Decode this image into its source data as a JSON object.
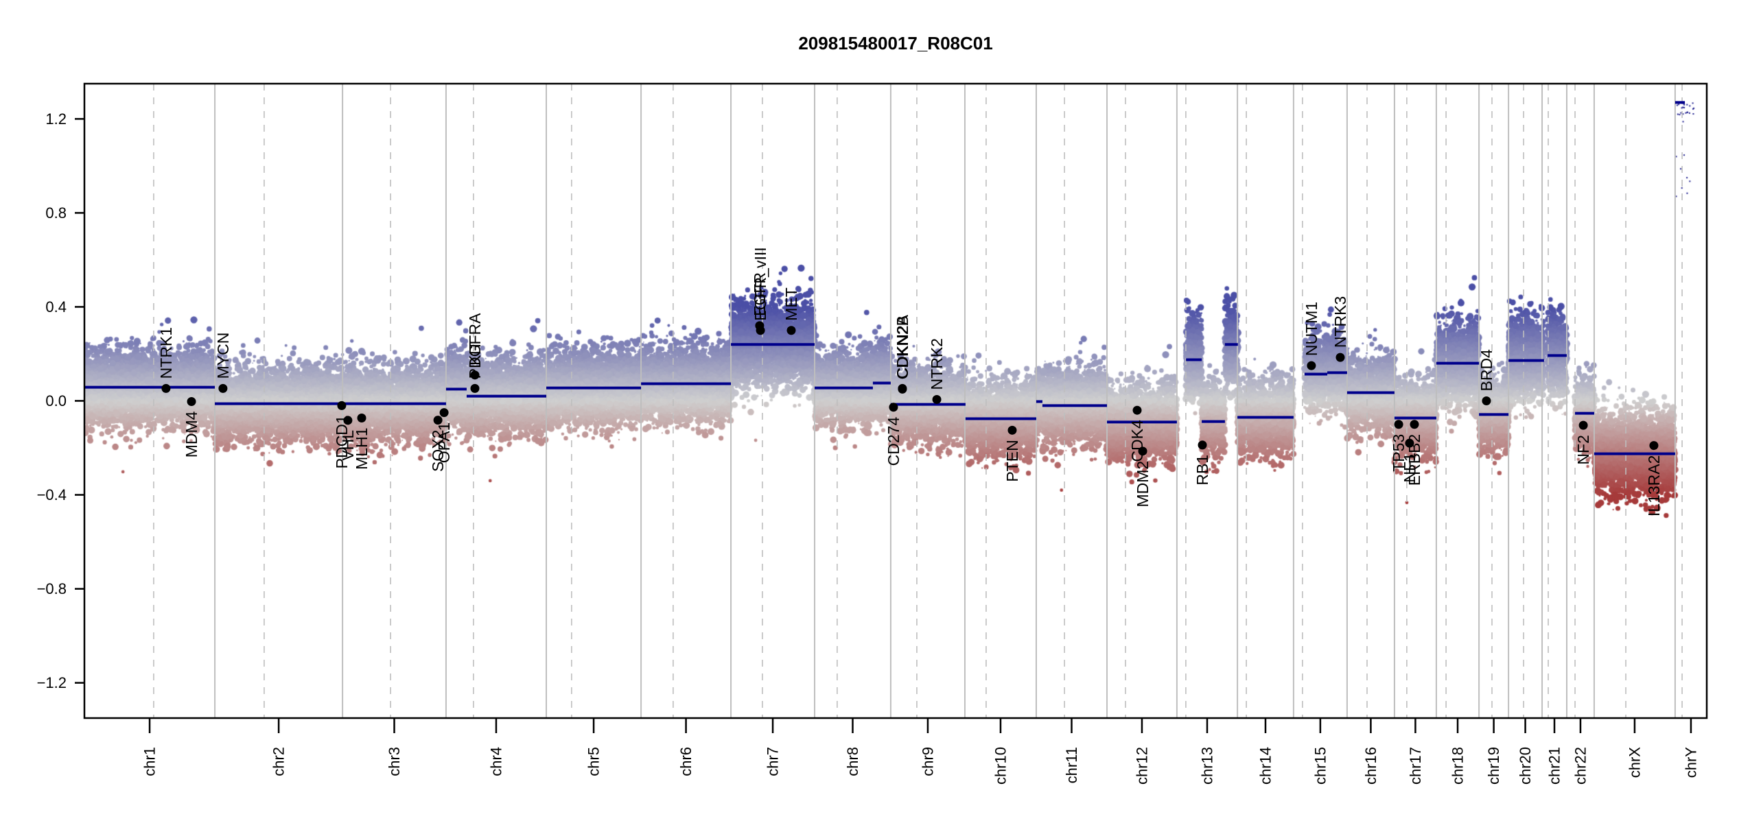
{
  "chart_data": {
    "type": "scatter",
    "title": "209815480017_R08C01",
    "xlabel": "",
    "ylabel": "",
    "x_units": "relative genome position (0-1000)",
    "xlim": [
      0,
      1000
    ],
    "ylim": [
      -1.35,
      1.35
    ],
    "yticks": [
      -1.2,
      -0.8,
      -0.4,
      0.0,
      0.4,
      0.8,
      1.2
    ],
    "ytick_labels": [
      "−1.2",
      "−0.8",
      "−0.4",
      "0.0",
      "0.4",
      "0.8",
      "1.2"
    ],
    "grid": false,
    "legend": "none",
    "colors": {
      "gain": "#4b4fa6",
      "neutral": "#cfcfcf",
      "loss": "#a63a3a",
      "segment": "#00008b",
      "gene_marker": "#000000",
      "chrom_boundary": "#bebebe",
      "centromere": "#bebebe"
    },
    "chromosomes": [
      {
        "name": "chr1",
        "start": 0.0,
        "end": 80.4,
        "centromere": 42.7
      },
      {
        "name": "chr2",
        "start": 80.4,
        "end": 159.1,
        "centromere": 110.8
      },
      {
        "name": "chr3",
        "start": 159.1,
        "end": 222.9,
        "centromere": 188.7
      },
      {
        "name": "chr4",
        "start": 222.9,
        "end": 284.7,
        "centromere": 239.8
      },
      {
        "name": "chr5",
        "start": 284.7,
        "end": 343.1,
        "centromere": 300.3
      },
      {
        "name": "chr6",
        "start": 343.1,
        "end": 398.5,
        "centromere": 362.9
      },
      {
        "name": "chr7",
        "start": 398.5,
        "end": 450.1,
        "centromere": 417.9
      },
      {
        "name": "chr8",
        "start": 450.1,
        "end": 497.0,
        "centromere": 464.0
      },
      {
        "name": "chr9",
        "start": 497.0,
        "end": 542.7,
        "centromere": 513.1
      },
      {
        "name": "chr10",
        "start": 542.7,
        "end": 586.7,
        "centromere": 555.8
      },
      {
        "name": "chr11",
        "start": 586.7,
        "end": 630.3,
        "centromere": 604.1
      },
      {
        "name": "chr12",
        "start": 630.3,
        "end": 673.4,
        "centromere": 641.7
      },
      {
        "name": "chr13",
        "start": 673.4,
        "end": 710.7,
        "centromere": 678.9
      },
      {
        "name": "chr14",
        "start": 710.7,
        "end": 745.3,
        "centromere": 716.2
      },
      {
        "name": "chr15",
        "start": 745.3,
        "end": 778.3,
        "centromere": 750.8
      },
      {
        "name": "chr16",
        "start": 778.3,
        "end": 807.5,
        "centromere": 790.6
      },
      {
        "name": "chr17",
        "start": 807.5,
        "end": 833.3,
        "centromere": 815.1
      },
      {
        "name": "chr18",
        "start": 833.3,
        "end": 859.6,
        "centromere": 839.3
      },
      {
        "name": "chr19",
        "start": 859.6,
        "end": 877.8,
        "centromere": 867.6
      },
      {
        "name": "chr20",
        "start": 877.8,
        "end": 898.5,
        "centromere": 887.1
      },
      {
        "name": "chr21",
        "start": 898.5,
        "end": 913.7,
        "centromere": 902.3
      },
      {
        "name": "chr22",
        "start": 913.7,
        "end": 930.6,
        "centromere": 918.8
      },
      {
        "name": "chrX",
        "start": 930.6,
        "end": 980.5,
        "centromere": 950.1
      },
      {
        "name": "chrY",
        "start": 980.5,
        "end": 1000.0,
        "centromere": 984.8
      }
    ],
    "segments": [
      {
        "chrom": "chr1",
        "start": 0.0,
        "end": 80.4,
        "value": 0.058
      },
      {
        "chrom": "chr2-3",
        "start": 80.4,
        "end": 222.9,
        "value": -0.012
      },
      {
        "chrom": "chr4",
        "start": 222.9,
        "end": 235.6,
        "value": 0.05
      },
      {
        "chrom": "chr4",
        "start": 235.6,
        "end": 284.7,
        "value": 0.02
      },
      {
        "chrom": "chr5",
        "start": 284.7,
        "end": 343.1,
        "value": 0.055
      },
      {
        "chrom": "chr6",
        "start": 343.1,
        "end": 398.5,
        "value": 0.073
      },
      {
        "chrom": "chr7",
        "start": 398.5,
        "end": 450.1,
        "value": 0.24
      },
      {
        "chrom": "chr8",
        "start": 450.1,
        "end": 486.0,
        "value": 0.055
      },
      {
        "chrom": "chr8",
        "start": 486.0,
        "end": 497.0,
        "value": 0.076
      },
      {
        "chrom": "chr9",
        "start": 497.0,
        "end": 543.1,
        "value": -0.015
      },
      {
        "chrom": "chr10",
        "start": 543.1,
        "end": 586.7,
        "value": -0.076
      },
      {
        "chrom": "chr11",
        "start": 586.7,
        "end": 590.5,
        "value": -0.003
      },
      {
        "chrom": "chr11",
        "start": 590.5,
        "end": 630.3,
        "value": -0.02
      },
      {
        "chrom": "chr12",
        "start": 630.3,
        "end": 673.4,
        "value": -0.09
      },
      {
        "chrom": "chr13",
        "start": 679.0,
        "end": 688.7,
        "value": 0.175
      },
      {
        "chrom": "chr13",
        "start": 688.7,
        "end": 703.0,
        "value": -0.088
      },
      {
        "chrom": "chr13",
        "start": 703.0,
        "end": 711.0,
        "value": 0.24
      },
      {
        "chrom": "chr14",
        "start": 710.7,
        "end": 745.3,
        "value": -0.07
      },
      {
        "chrom": "chr15",
        "start": 752.1,
        "end": 766.1,
        "value": 0.114
      },
      {
        "chrom": "chr15",
        "start": 766.1,
        "end": 778.3,
        "value": 0.12
      },
      {
        "chrom": "chr16",
        "start": 778.3,
        "end": 807.5,
        "value": 0.035
      },
      {
        "chrom": "chr17",
        "start": 807.5,
        "end": 833.3,
        "value": -0.073
      },
      {
        "chrom": "chr18",
        "start": 833.3,
        "end": 859.6,
        "value": 0.16
      },
      {
        "chrom": "chr19",
        "start": 859.6,
        "end": 877.8,
        "value": -0.058
      },
      {
        "chrom": "chr20",
        "start": 877.8,
        "end": 899.7,
        "value": 0.172
      },
      {
        "chrom": "chr21",
        "start": 901.9,
        "end": 913.7,
        "value": 0.193
      },
      {
        "chrom": "chr22",
        "start": 918.8,
        "end": 930.6,
        "value": -0.053
      },
      {
        "chrom": "chrX",
        "start": 930.6,
        "end": 980.5,
        "value": -0.225
      },
      {
        "chrom": "chrY",
        "start": 980.5,
        "end": 986.5,
        "value": 1.27
      }
    ],
    "genes": [
      {
        "name": "NTRK1",
        "pos": 50.3,
        "value": 0.053,
        "label_dir": "up"
      },
      {
        "name": "MDM4",
        "pos": 66.0,
        "value": -0.003,
        "label_dir": "down"
      },
      {
        "name": "MYCN",
        "pos": 85.4,
        "value": 0.053,
        "label_dir": "up"
      },
      {
        "name": "PDCD1",
        "pos": 158.6,
        "value": -0.02,
        "label_dir": "down"
      },
      {
        "name": "VHL",
        "pos": 162.4,
        "value": -0.083,
        "label_dir": "down"
      },
      {
        "name": "MLH1",
        "pos": 170.9,
        "value": -0.073,
        "label_dir": "down"
      },
      {
        "name": "SOX2",
        "pos": 217.9,
        "value": -0.082,
        "label_dir": "down"
      },
      {
        "name": "OPA1",
        "pos": 221.7,
        "value": -0.05,
        "label_dir": "down"
      },
      {
        "name": "KIT",
        "pos": 240.7,
        "value": 0.11,
        "label_dir": "up"
      },
      {
        "name": "PDGFRA",
        "pos": 240.7,
        "value": 0.053,
        "label_dir": "up"
      },
      {
        "name": "EGFR",
        "pos": 416.2,
        "value": 0.32,
        "label_dir": "up"
      },
      {
        "name": "EGFR_vIII",
        "pos": 416.7,
        "value": 0.3,
        "label_dir": "up"
      },
      {
        "name": "MET",
        "pos": 435.7,
        "value": 0.3,
        "label_dir": "up"
      },
      {
        "name": "CD274",
        "pos": 498.7,
        "value": -0.027,
        "label_dir": "down"
      },
      {
        "name": "CDKN2A",
        "pos": 504.2,
        "value": 0.053,
        "label_dir": "up"
      },
      {
        "name": "CDKN2B",
        "pos": 504.2,
        "value": 0.05,
        "label_dir": "up"
      },
      {
        "name": "NTRK2",
        "pos": 525.4,
        "value": 0.006,
        "label_dir": "up"
      },
      {
        "name": "PTEN",
        "pos": 571.9,
        "value": -0.125,
        "label_dir": "down"
      },
      {
        "name": "CDK4",
        "pos": 648.9,
        "value": -0.04,
        "label_dir": "down"
      },
      {
        "name": "MDM2",
        "pos": 652.3,
        "value": -0.214,
        "label_dir": "down"
      },
      {
        "name": "RB1",
        "pos": 689.1,
        "value": -0.188,
        "label_dir": "down"
      },
      {
        "name": "NUTM1",
        "pos": 756.3,
        "value": 0.15,
        "label_dir": "up"
      },
      {
        "name": "NTRK3",
        "pos": 774.1,
        "value": 0.185,
        "label_dir": "up"
      },
      {
        "name": "TP53",
        "pos": 810.1,
        "value": -0.1,
        "label_dir": "down"
      },
      {
        "name": "NF1",
        "pos": 816.8,
        "value": -0.18,
        "label_dir": "down"
      },
      {
        "name": "ERBB2",
        "pos": 819.8,
        "value": -0.1,
        "label_dir": "down"
      },
      {
        "name": "BRD4",
        "pos": 864.2,
        "value": 0.0,
        "label_dir": "up"
      },
      {
        "name": "NF2",
        "pos": 923.9,
        "value": -0.104,
        "label_dir": "down"
      },
      {
        "name": "IL13RA2",
        "pos": 967.4,
        "value": -0.19,
        "label_dir": "down"
      }
    ]
  }
}
